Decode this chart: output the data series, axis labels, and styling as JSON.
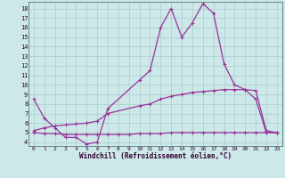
{
  "background_color": "#cce8e8",
  "grid_color": "#aacccc",
  "line_color": "#993399",
  "xlabel": "Windchill (Refroidissement éolien,°C)",
  "x_ticks": [
    0,
    1,
    2,
    3,
    4,
    5,
    6,
    7,
    8,
    9,
    10,
    11,
    12,
    13,
    14,
    15,
    16,
    17,
    18,
    19,
    20,
    21,
    22,
    23
  ],
  "y_ticks": [
    4,
    5,
    6,
    7,
    8,
    9,
    10,
    11,
    12,
    13,
    14,
    15,
    16,
    17,
    18
  ],
  "ylim": [
    3.6,
    18.7
  ],
  "xlim": [
    -0.5,
    23.5
  ],
  "line1_x": [
    0,
    1,
    2,
    3,
    4,
    5,
    6,
    7,
    10,
    11,
    12,
    13,
    14,
    15,
    16,
    17,
    18,
    19,
    20,
    21,
    22,
    23
  ],
  "line1_y": [
    8.5,
    6.5,
    5.5,
    4.5,
    4.5,
    3.8,
    4.0,
    7.5,
    10.5,
    11.5,
    16.0,
    18.0,
    15.0,
    16.5,
    18.5,
    17.5,
    12.2,
    10.0,
    9.5,
    8.5,
    5.0,
    5.0
  ],
  "line2_x": [
    0,
    1,
    2,
    3,
    4,
    5,
    6,
    7,
    10,
    11,
    12,
    13,
    14,
    15,
    16,
    17,
    18,
    19,
    20,
    21,
    22,
    23
  ],
  "line2_y": [
    5.2,
    5.5,
    5.7,
    5.8,
    5.9,
    6.0,
    6.2,
    7.0,
    7.8,
    8.0,
    8.5,
    8.8,
    9.0,
    9.2,
    9.3,
    9.4,
    9.5,
    9.5,
    9.5,
    9.4,
    5.2,
    5.0
  ],
  "line3_x": [
    0,
    1,
    2,
    3,
    4,
    5,
    6,
    7,
    8,
    9,
    10,
    11,
    12,
    13,
    14,
    15,
    16,
    17,
    18,
    19,
    20,
    21,
    22,
    23
  ],
  "line3_y": [
    5.0,
    4.9,
    4.9,
    4.8,
    4.8,
    4.8,
    4.8,
    4.8,
    4.8,
    4.8,
    4.9,
    4.9,
    4.9,
    5.0,
    5.0,
    5.0,
    5.0,
    5.0,
    5.0,
    5.0,
    5.0,
    5.0,
    5.0,
    5.0
  ]
}
